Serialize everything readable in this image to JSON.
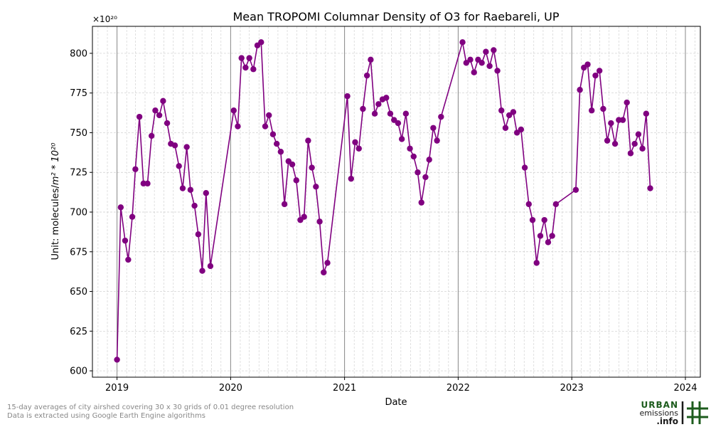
{
  "chart_data": {
    "type": "line",
    "title": "Mean TROPOMI Columnar Density of O3 for Raebareli, UP",
    "xlabel": "Date",
    "ylabel_prefix": "Unit: molecules/",
    "ylabel_math": "m² * 10²⁰",
    "scale_label": "×10²⁰",
    "ylim": [
      596,
      817
    ],
    "yticks": [
      600,
      625,
      650,
      675,
      700,
      725,
      750,
      775,
      800
    ],
    "xticks": [
      "2019",
      "2020",
      "2021",
      "2022",
      "2023",
      "2024"
    ],
    "xlim": [
      "2018-10-14",
      "2024-02-18"
    ],
    "grid": true,
    "color": "#800080",
    "marker": "circle",
    "series": [
      {
        "points": [
          [
            "2019-01-01",
            607
          ],
          [
            "2019-01-13",
            703
          ],
          [
            "2019-01-27",
            682
          ],
          [
            "2019-02-06",
            670
          ],
          [
            "2019-02-19",
            697
          ],
          [
            "2019-03-01",
            727
          ],
          [
            "2019-03-14",
            760
          ],
          [
            "2019-03-27",
            718
          ],
          [
            "2019-04-09",
            718
          ],
          [
            "2019-04-22",
            748
          ],
          [
            "2019-05-04",
            764
          ],
          [
            "2019-05-17",
            761
          ],
          [
            "2019-05-29",
            770
          ],
          [
            "2019-06-11",
            756
          ],
          [
            "2019-06-23",
            743
          ],
          [
            "2019-07-06",
            742
          ],
          [
            "2019-07-19",
            729
          ],
          [
            "2019-07-31",
            715
          ],
          [
            "2019-08-13",
            741
          ],
          [
            "2019-08-25",
            714
          ],
          [
            "2019-09-07",
            704
          ],
          [
            "2019-09-19",
            686
          ],
          [
            "2019-10-02",
            663
          ],
          [
            "2019-10-14",
            712
          ],
          [
            "2019-10-28",
            666
          ],
          [
            "2020-01-11",
            764
          ],
          [
            "2020-01-24",
            754
          ],
          [
            "2020-02-05",
            797
          ],
          [
            "2020-02-18",
            791
          ],
          [
            "2020-03-01",
            797
          ],
          [
            "2020-03-14",
            790
          ],
          [
            "2020-03-27",
            805
          ],
          [
            "2020-04-08",
            807
          ],
          [
            "2020-04-21",
            754
          ],
          [
            "2020-05-03",
            761
          ],
          [
            "2020-05-16",
            749
          ],
          [
            "2020-05-28",
            743
          ],
          [
            "2020-06-10",
            738
          ],
          [
            "2020-06-22",
            705
          ],
          [
            "2020-07-05",
            732
          ],
          [
            "2020-07-17",
            730
          ],
          [
            "2020-07-30",
            720
          ],
          [
            "2020-08-12",
            695
          ],
          [
            "2020-08-24",
            697
          ],
          [
            "2020-09-06",
            745
          ],
          [
            "2020-09-18",
            728
          ],
          [
            "2020-10-01",
            716
          ],
          [
            "2020-10-13",
            694
          ],
          [
            "2020-10-26",
            662
          ],
          [
            "2020-11-07",
            668
          ],
          [
            "2021-01-10",
            773
          ],
          [
            "2021-01-22",
            721
          ],
          [
            "2021-02-04",
            744
          ],
          [
            "2021-02-16",
            740
          ],
          [
            "2021-03-01",
            765
          ],
          [
            "2021-03-14",
            786
          ],
          [
            "2021-03-26",
            796
          ],
          [
            "2021-04-08",
            762
          ],
          [
            "2021-04-20",
            768
          ],
          [
            "2021-05-03",
            771
          ],
          [
            "2021-05-15",
            772
          ],
          [
            "2021-05-28",
            762
          ],
          [
            "2021-06-09",
            758
          ],
          [
            "2021-06-22",
            756
          ],
          [
            "2021-07-04",
            746
          ],
          [
            "2021-07-17",
            762
          ],
          [
            "2021-07-30",
            740
          ],
          [
            "2021-08-11",
            735
          ],
          [
            "2021-08-24",
            725
          ],
          [
            "2021-09-05",
            706
          ],
          [
            "2021-09-18",
            722
          ],
          [
            "2021-09-30",
            733
          ],
          [
            "2021-10-13",
            753
          ],
          [
            "2021-10-25",
            745
          ],
          [
            "2021-11-07",
            760
          ],
          [
            "2022-01-15",
            807
          ],
          [
            "2022-01-27",
            794
          ],
          [
            "2022-02-09",
            796
          ],
          [
            "2022-02-21",
            788
          ],
          [
            "2022-03-06",
            796
          ],
          [
            "2022-03-18",
            794
          ],
          [
            "2022-03-31",
            801
          ],
          [
            "2022-04-12",
            792
          ],
          [
            "2022-04-25",
            802
          ],
          [
            "2022-05-07",
            789
          ],
          [
            "2022-05-20",
            764
          ],
          [
            "2022-06-02",
            753
          ],
          [
            "2022-06-14",
            761
          ],
          [
            "2022-06-27",
            763
          ],
          [
            "2022-07-09",
            750
          ],
          [
            "2022-07-22",
            752
          ],
          [
            "2022-08-03",
            728
          ],
          [
            "2022-08-16",
            705
          ],
          [
            "2022-08-28",
            695
          ],
          [
            "2022-09-10",
            668
          ],
          [
            "2022-09-22",
            685
          ],
          [
            "2022-10-05",
            695
          ],
          [
            "2022-10-17",
            681
          ],
          [
            "2022-10-30",
            685
          ],
          [
            "2022-11-11",
            705
          ],
          [
            "2023-01-14",
            714
          ],
          [
            "2023-01-27",
            777
          ],
          [
            "2023-02-09",
            791
          ],
          [
            "2023-02-21",
            793
          ],
          [
            "2023-03-06",
            764
          ],
          [
            "2023-03-18",
            786
          ],
          [
            "2023-03-31",
            789
          ],
          [
            "2023-04-12",
            765
          ],
          [
            "2023-04-25",
            745
          ],
          [
            "2023-05-07",
            756
          ],
          [
            "2023-05-20",
            743
          ],
          [
            "2023-06-01",
            758
          ],
          [
            "2023-06-14",
            758
          ],
          [
            "2023-06-27",
            769
          ],
          [
            "2023-07-09",
            737
          ],
          [
            "2023-07-22",
            743
          ],
          [
            "2023-08-03",
            749
          ],
          [
            "2023-08-16",
            740
          ],
          [
            "2023-08-28",
            762
          ],
          [
            "2023-09-10",
            715
          ]
        ]
      }
    ]
  },
  "footnotes": [
    "15-day averages of city airshed covering 30 x 30 grids of 0.01 degree resolution",
    "Data is extracted using Google Earth Engine algorithms"
  ],
  "logo": {
    "line1": "URBAN",
    "line2": "emissions",
    "line3": ".info",
    "colors": {
      "green": "#1d5c1d",
      "dark": "#1a1a1a"
    }
  }
}
